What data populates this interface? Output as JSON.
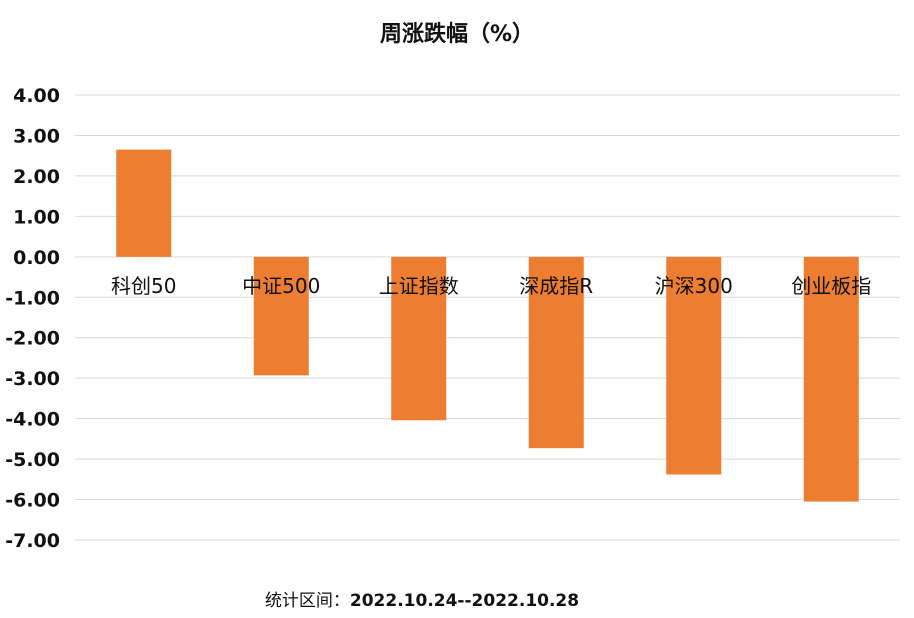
{
  "chart_data": {
    "type": "bar",
    "title": "周涨跌幅（%）",
    "categories": [
      "科创50",
      "中证500",
      "上证指数",
      "深成指R",
      "沪深300",
      "创业板指"
    ],
    "values": [
      2.65,
      -2.93,
      -4.04,
      -4.73,
      -5.38,
      -6.05
    ],
    "ylim": [
      -7.0,
      4.0
    ],
    "yticks": [
      "4.00",
      "3.00",
      "2.00",
      "1.00",
      "0.00",
      "-1.00",
      "-2.00",
      "-3.00",
      "-4.00",
      "-5.00",
      "-6.00",
      "-7.00"
    ],
    "grid": true,
    "bar_color": "#ED7D31",
    "grid_color": "#D9D9D9"
  },
  "footer": {
    "label": "统计区间：",
    "range": "2022.10.24--2022.10.28"
  }
}
